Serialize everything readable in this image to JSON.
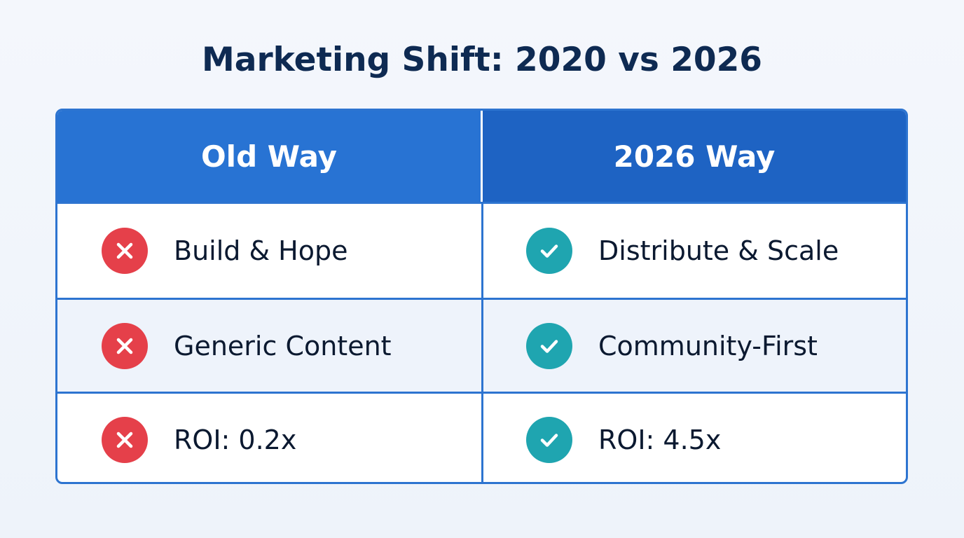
{
  "title": "Marketing Shift: 2020 vs 2026",
  "columns": {
    "old": "Old Way",
    "new": "2026 Way"
  },
  "rows": [
    {
      "old": "Build & Hope",
      "new": "Distribute & Scale",
      "old_icon": "x-icon",
      "new_icon": "check-icon"
    },
    {
      "old": "Generic Content",
      "new": "Community-First",
      "old_icon": "x-icon",
      "new_icon": "check-icon"
    },
    {
      "old": "ROI: 0.2x",
      "new": "ROI: 4.5x",
      "old_icon": "x-icon",
      "new_icon": "check-icon"
    }
  ],
  "colors": {
    "title": "#0e2a52",
    "header_old": "#2873d3",
    "header_new": "#1e63c3",
    "border": "#2d74d0",
    "bad": "#e5404a",
    "good": "#1fa5b0"
  }
}
